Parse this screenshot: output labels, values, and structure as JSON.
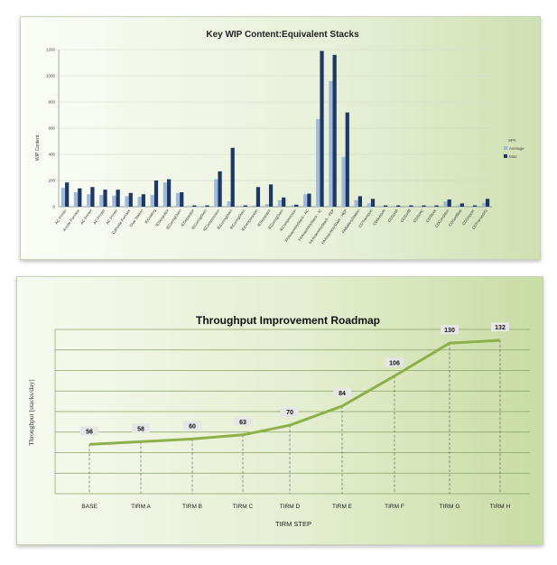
{
  "charts": {
    "wip": {
      "title": "Key WIP Content:Equivalent Stacks",
      "ylabel": "WIP Content",
      "y_ticks": [
        "0",
        "200",
        "400",
        "600",
        "800",
        "1000",
        "1200"
      ],
      "legend": {
        "title": "SPA",
        "items": [
          "Average",
          "Max"
        ]
      },
      "colors": {
        "average": "#9fb9dc",
        "max": "#1f3763",
        "axis": "#8a8a8a",
        "grid": "#cfd6c4"
      }
    },
    "roadmap": {
      "title": "Throughput Improvement Roadmap",
      "ylabel": "Throughput [stacks/day]",
      "xlabel": "TIRM STEP",
      "colors": {
        "line": "#8db04a",
        "label_bg": "#e6e6e6",
        "grid": "#8aa06a"
      }
    }
  },
  "chart_data": [
    {
      "type": "bar",
      "title": "Key WIP Content:Equivalent Stacks",
      "ylabel": "WIP Content",
      "xlabel": "",
      "ylim": [
        0,
        1200
      ],
      "grid": true,
      "legend_position": "right",
      "categories": [
        "AC Printer",
        "Anode Furnace",
        "AC Printer",
        "AC Printer",
        "AC Printer",
        "Cathode Furnace",
        "Glue Station",
        "IECoating",
        "IESeparator",
        "IECuringOven",
        "IESeparator",
        "IECuringOven",
        "IECompression",
        "IECuringOven",
        "IECuringOven",
        "IECompression",
        "IESeparator",
        "IECuringOven",
        "IECompression",
        "FAAssemblyStack - AC",
        "FAAssemblyStack - IC",
        "FAAssemblyStack - FEP",
        "FAAssemblyStack - HEP",
        "FABatteryStation",
        "CDTransport",
        "CDSupport",
        "CDSortA",
        "CDSortB",
        "CDSortC",
        "CDStock",
        "CDCondition",
        "CDSortBlue",
        "CDShipper",
        "CDTransport2"
      ],
      "series": [
        {
          "name": "Average",
          "values": [
            145,
            110,
            95,
            90,
            85,
            80,
            75,
            90,
            185,
            105,
            5,
            5,
            210,
            40,
            5,
            10,
            20,
            50,
            10,
            95,
            670,
            960,
            380,
            50,
            25,
            5,
            5,
            5,
            5,
            5,
            40,
            10,
            5,
            30
          ]
        },
        {
          "name": "Max",
          "values": [
            185,
            140,
            150,
            130,
            130,
            105,
            95,
            200,
            210,
            110,
            10,
            10,
            270,
            450,
            10,
            150,
            170,
            70,
            15,
            100,
            1190,
            1160,
            720,
            80,
            60,
            10,
            10,
            10,
            10,
            10,
            55,
            25,
            10,
            60
          ]
        }
      ]
    },
    {
      "type": "line",
      "title": "Throughput Improvement Roadmap",
      "ylabel": "Throughput [stacks/day]",
      "xlabel": "TIRM STEP",
      "x": [
        "BASE",
        "TIRM A",
        "TIRM B",
        "TIRM C",
        "TIRM D",
        "TIRM E",
        "TIRM F",
        "TIRM G",
        "TIRM H"
      ],
      "series": [
        {
          "values": [
            56,
            58,
            60,
            63,
            70,
            84,
            106,
            130,
            132
          ]
        }
      ],
      "ylim": [
        20,
        140
      ],
      "grid": true
    }
  ]
}
